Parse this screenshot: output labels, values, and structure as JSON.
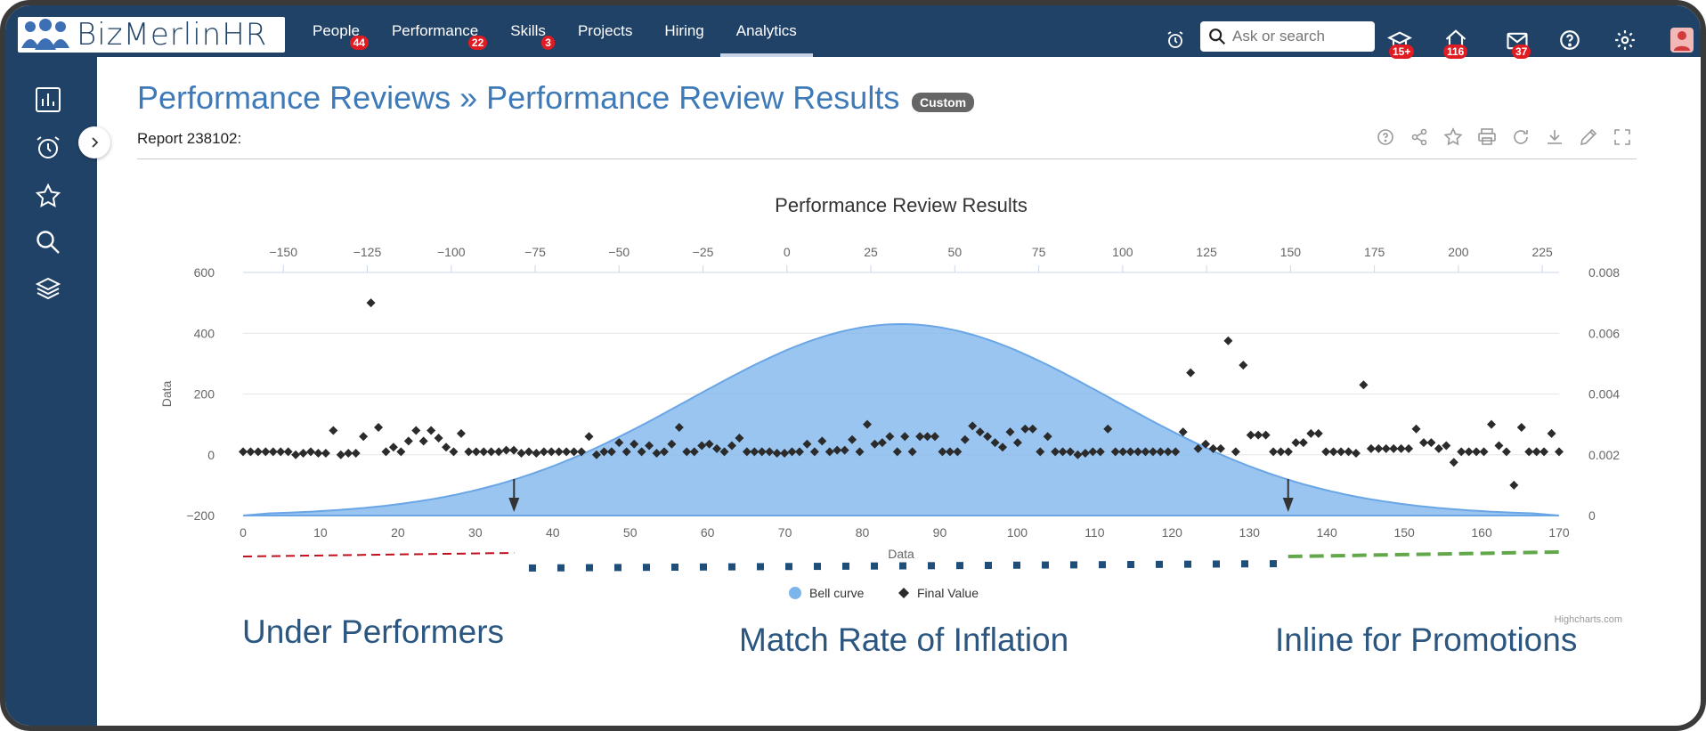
{
  "app": {
    "logo_text": "BizMerlinHR",
    "nav": [
      {
        "label": "People",
        "badge": "44"
      },
      {
        "label": "Performance",
        "badge": "22"
      },
      {
        "label": "Skills",
        "badge": "3"
      },
      {
        "label": "Projects",
        "badge": ""
      },
      {
        "label": "Hiring",
        "badge": ""
      },
      {
        "label": "Analytics",
        "badge": ""
      }
    ],
    "search_placeholder": "Ask or search",
    "notification_badges": {
      "learning": "15+",
      "home": "116",
      "mail": "37"
    }
  },
  "page": {
    "title": "Performance Reviews » Performance Review Results",
    "tag": "Custom",
    "report_label": "Report 238102:"
  },
  "labels": {
    "left": "Under Performers",
    "middle": "Match Rate of Inflation",
    "right": "Inline for Promotions"
  },
  "chart_data": {
    "type": "scatter",
    "title": "Performance Review Results",
    "credit": "Highcharts.com",
    "xlabel": "Data",
    "ylabel": "Data",
    "x_bottom": {
      "range": [
        0,
        170
      ],
      "ticks": [
        0,
        10,
        20,
        30,
        40,
        50,
        60,
        70,
        80,
        90,
        100,
        110,
        120,
        130,
        140,
        150,
        160,
        170
      ]
    },
    "x_top": {
      "range": [
        -162,
        230
      ],
      "ticks": [
        -150,
        -125,
        -100,
        -75,
        -50,
        -25,
        0,
        25,
        50,
        75,
        100,
        125,
        150,
        175,
        200,
        225
      ]
    },
    "y_left": {
      "range": [
        -200,
        600
      ],
      "ticks": [
        -200,
        0,
        200,
        400,
        600
      ]
    },
    "y_right": {
      "range": [
        0,
        0.008
      ],
      "ticks": [
        "0",
        "0.002",
        "0.004",
        "0.006",
        "0.008"
      ]
    },
    "legend": [
      "Bell curve",
      "Final Value"
    ],
    "bell_curve": {
      "mean": 34,
      "sd": 63,
      "peak": 0.0063,
      "color": "#7cb5ec"
    },
    "final_values": [
      10,
      10,
      10,
      10,
      10,
      10,
      10,
      0,
      5,
      10,
      5,
      5,
      80,
      0,
      5,
      5,
      60,
      500,
      90,
      10,
      25,
      10,
      45,
      80,
      45,
      80,
      55,
      25,
      10,
      70,
      10,
      10,
      10,
      10,
      10,
      15,
      15,
      5,
      10,
      5,
      10,
      10,
      10,
      10,
      10,
      10,
      60,
      0,
      10,
      10,
      40,
      10,
      35,
      10,
      30,
      5,
      10,
      35,
      90,
      10,
      10,
      30,
      35,
      20,
      10,
      30,
      55,
      10,
      10,
      10,
      10,
      5,
      5,
      10,
      10,
      35,
      10,
      45,
      10,
      15,
      15,
      50,
      10,
      100,
      35,
      40,
      60,
      10,
      60,
      10,
      60,
      60,
      60,
      10,
      10,
      10,
      50,
      95,
      75,
      60,
      40,
      25,
      75,
      40,
      85,
      85,
      10,
      60,
      10,
      10,
      10,
      0,
      5,
      10,
      10,
      85,
      10,
      10,
      10,
      10,
      10,
      10,
      10,
      10,
      10,
      75,
      270,
      20,
      35,
      20,
      20,
      375,
      10,
      295,
      65,
      65,
      65,
      10,
      10,
      10,
      40,
      40,
      70,
      70,
      10,
      10,
      10,
      10,
      5,
      230,
      20,
      20,
      20,
      20,
      20,
      20,
      85,
      40,
      40,
      20,
      30,
      -25,
      10,
      10,
      10,
      10,
      100,
      30,
      10,
      -100,
      90,
      10,
      10,
      10,
      70,
      10
    ],
    "markers": [
      35,
      135
    ],
    "zones": [
      {
        "name": "Under Performers",
        "from": 0,
        "to": 35,
        "color": "#c0101e",
        "style": "dashed"
      },
      {
        "name": "Match Rate of Inflation",
        "from": 36,
        "to": 135,
        "color": "#1f4e79",
        "style": "dotted"
      },
      {
        "name": "Inline for Promotions",
        "from": 135,
        "to": 170,
        "color": "#62a84b",
        "style": "dashed"
      }
    ]
  }
}
